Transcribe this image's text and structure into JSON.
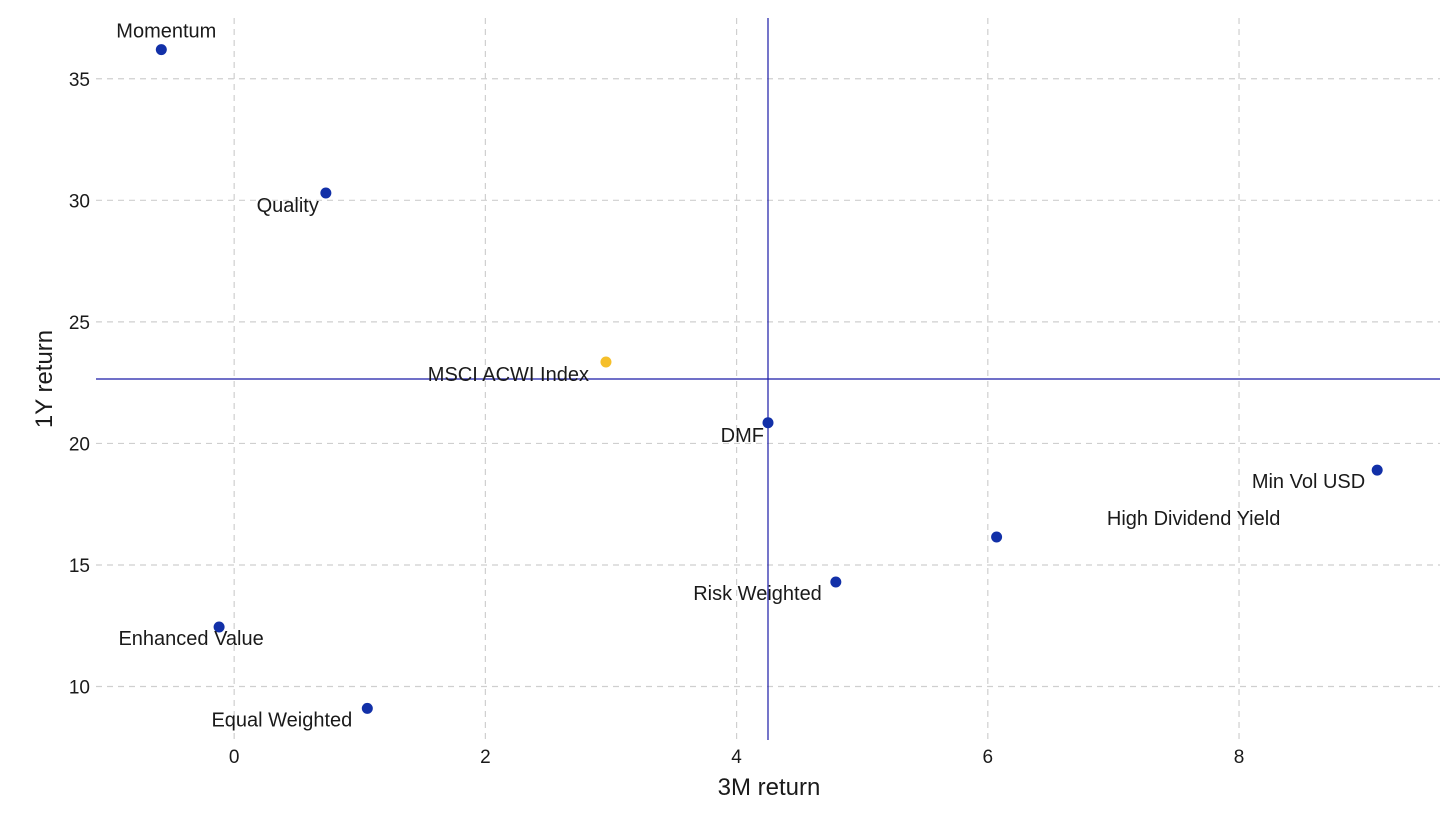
{
  "chart_data": {
    "type": "scatter",
    "title": "",
    "xlabel": "3M return",
    "ylabel": "1Y return",
    "xlim": [
      -1.1,
      9.6
    ],
    "ylim": [
      7.8,
      37.5
    ],
    "x_ticks": [
      0,
      2,
      4,
      6,
      8
    ],
    "y_ticks": [
      10,
      15,
      20,
      25,
      30,
      35
    ],
    "grid": true,
    "reference_lines": {
      "vertical_x": 4.25,
      "horizontal_y": 22.65,
      "color": "#1a1aa6"
    },
    "colors": {
      "point": "#1230a8",
      "highlight": "#f5bf2a",
      "grid": "#cfcfcf"
    },
    "points": [
      {
        "label": "Momentum",
        "x": -0.58,
        "y": 36.2,
        "highlight": false
      },
      {
        "label": "Quality",
        "x": 0.73,
        "y": 30.3,
        "highlight": false
      },
      {
        "label": "MSCI ACWI Index",
        "x": 2.96,
        "y": 23.35,
        "highlight": true
      },
      {
        "label": "DMF",
        "x": 4.25,
        "y": 20.85,
        "highlight": false
      },
      {
        "label": "Min Vol USD",
        "x": 9.1,
        "y": 18.9,
        "highlight": false
      },
      {
        "label": "High Dividend Yield",
        "x": 6.07,
        "y": 16.15,
        "highlight": false
      },
      {
        "label": "Risk Weighted",
        "x": 4.79,
        "y": 14.3,
        "highlight": false
      },
      {
        "label": "Enhanced Value",
        "x": -0.12,
        "y": 12.45,
        "highlight": false
      },
      {
        "label": "Equal Weighted",
        "x": 1.06,
        "y": 9.1,
        "highlight": false
      }
    ]
  }
}
